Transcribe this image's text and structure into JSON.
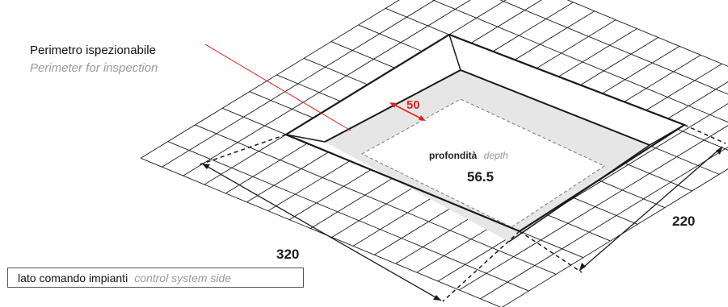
{
  "labels": {
    "perimeter_it": "Perimetro ispezionabile",
    "perimeter_en": "Perimeter for inspection",
    "perimeter_width": "50",
    "depth_it": "profondità",
    "depth_en": "depth",
    "depth_value": "56.5",
    "width_dim": "320",
    "length_dim": "220",
    "control_side_it": "lato comando impianti",
    "control_side_en": "control system side"
  },
  "colors": {
    "line": "#1a1a1a",
    "perimeter_fill": "#e6e6e6",
    "accent": "#e3211c",
    "secondary_text": "#9a9a9a"
  }
}
